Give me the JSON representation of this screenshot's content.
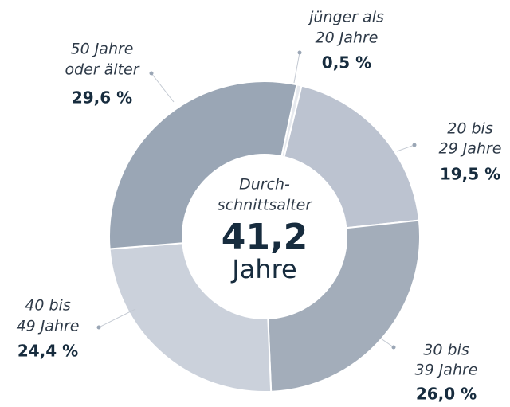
{
  "chart_data": {
    "type": "pie",
    "categories": [
      [
        "jünger als",
        "20 Jahre"
      ],
      [
        "20 bis",
        "29 Jahre"
      ],
      [
        "30 bis",
        "39 Jahre"
      ],
      [
        "40 bis",
        "49 Jahre"
      ],
      [
        "50 Jahre",
        "oder älter"
      ]
    ],
    "values": [
      0.5,
      19.5,
      26.0,
      24.4,
      29.6
    ],
    "value_labels": [
      "0,5 %",
      "19,5 %",
      "26,0 %",
      "24,4 %",
      "29,6 %"
    ],
    "colors": [
      "#e6e9ee",
      "#bcc3d0",
      "#a3adba",
      "#cbd1db",
      "#9aa6b5"
    ],
    "center_label": [
      "Durch-",
      "schnittsalter"
    ],
    "center_value": "41,2",
    "center_unit": "Jahre"
  }
}
